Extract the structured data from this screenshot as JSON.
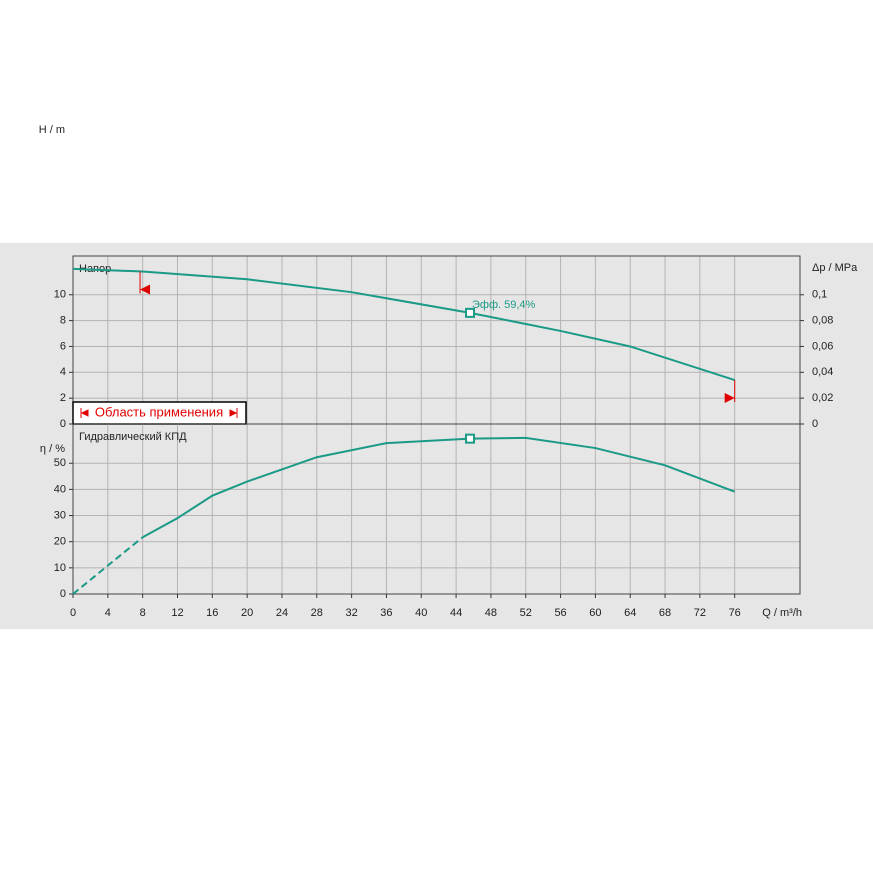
{
  "chart_data": [
    {
      "type": "line",
      "panel_label": "Напор",
      "ylabel": "H / m",
      "y2label": "Δp / MPa",
      "xlim": [
        0,
        83.5
      ],
      "ylim": [
        0,
        13
      ],
      "yticks": [
        0,
        2,
        4,
        6,
        8,
        10
      ],
      "y2lim": [
        0,
        0.13
      ],
      "y2ticks": [
        0,
        {
          "value": 0.02,
          "label": "0,02"
        },
        {
          "value": 0.04,
          "label": "0,04"
        },
        {
          "value": 0.06,
          "label": "0,06"
        },
        {
          "value": 0.08,
          "label": "0,08"
        },
        {
          "value": 0.1,
          "label": "0,1"
        }
      ],
      "x": [
        0,
        8,
        20,
        32,
        45.6,
        56,
        64,
        76
      ],
      "series": [
        {
          "color": "#1a9a87",
          "values": [
            12,
            11.8,
            11.2,
            10.2,
            8.6,
            7.2,
            6.0,
            3.4
          ]
        }
      ],
      "annotation": {
        "text": "Эфф.  59,4%",
        "x": 45.6,
        "y": 8.6
      },
      "range_label": "Область применения",
      "range_color": "#e00000",
      "operating_range": {
        "x": [
          7.7,
          76
        ],
        "y": [
          11.8,
          3.4
        ]
      },
      "grid": true
    },
    {
      "type": "line",
      "panel_label": "Гидравлический КПД",
      "ylabel": "η / %",
      "xlabel": "Q / m³/h",
      "xlim": [
        0,
        83.5
      ],
      "ylim": [
        0,
        65
      ],
      "yticks": [
        0,
        10,
        20,
        30,
        40,
        50
      ],
      "xticks": [
        0,
        4,
        8,
        12,
        16,
        20,
        24,
        28,
        32,
        36,
        40,
        44,
        48,
        52,
        56,
        60,
        64,
        68,
        72,
        76
      ],
      "x": [
        0,
        8,
        12,
        16,
        20,
        28,
        36,
        45.6,
        52,
        60,
        68,
        76
      ],
      "series": [
        {
          "color": "#1a9a87",
          "dash": true,
          "values": [
            0,
            21.7,
            null,
            null,
            null,
            null,
            null,
            null,
            null,
            null,
            null,
            null
          ]
        },
        {
          "color": "#1a9a87",
          "values": [
            null,
            21.7,
            29,
            37.6,
            43,
            52.3,
            57.7,
            59.4,
            59.7,
            55.8,
            49.2,
            39.1
          ]
        }
      ],
      "marker": {
        "x": 45.6,
        "y": 59.4
      },
      "grid": true
    }
  ]
}
